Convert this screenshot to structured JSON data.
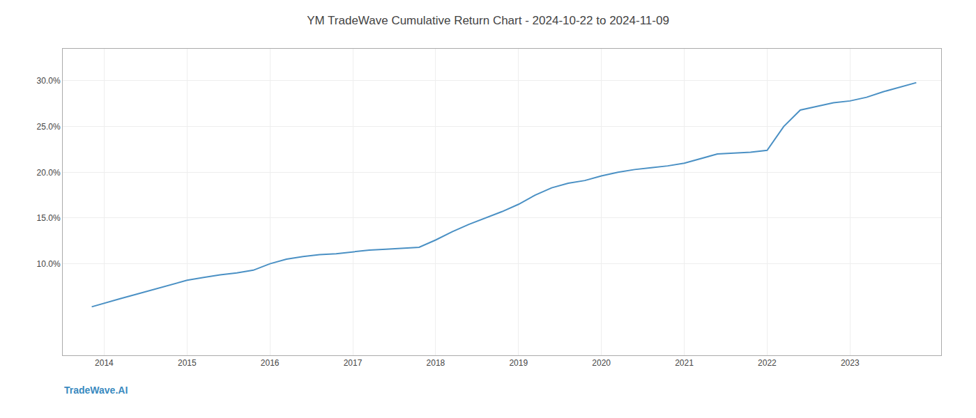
{
  "chart_data": {
    "type": "line",
    "title": "YM TradeWave Cumulative Return Chart - 2024-10-22 to 2024-11-09",
    "annotations": [
      "TradeWave.AI"
    ],
    "color": "#4a90c4",
    "x": [
      2013.85,
      2014.0,
      2014.2,
      2014.4,
      2014.6,
      2014.8,
      2015.0,
      2015.2,
      2015.4,
      2015.6,
      2015.8,
      2016.0,
      2016.2,
      2016.4,
      2016.6,
      2016.8,
      2017.0,
      2017.2,
      2017.4,
      2017.6,
      2017.8,
      2018.0,
      2018.2,
      2018.4,
      2018.6,
      2018.8,
      2019.0,
      2019.2,
      2019.4,
      2019.6,
      2019.8,
      2020.0,
      2020.2,
      2020.4,
      2020.6,
      2020.8,
      2021.0,
      2021.2,
      2021.4,
      2021.6,
      2021.8,
      2022.0,
      2022.2,
      2022.4,
      2022.6,
      2022.8,
      2023.0,
      2023.2,
      2023.4,
      2023.6,
      2023.8
    ],
    "values": [
      0.053,
      0.057,
      0.062,
      0.067,
      0.072,
      0.077,
      0.082,
      0.085,
      0.088,
      0.09,
      0.093,
      0.1,
      0.105,
      0.108,
      0.11,
      0.111,
      0.113,
      0.115,
      0.116,
      0.117,
      0.118,
      0.126,
      0.135,
      0.143,
      0.15,
      0.157,
      0.165,
      0.175,
      0.183,
      0.188,
      0.191,
      0.196,
      0.2,
      0.203,
      0.205,
      0.207,
      0.21,
      0.215,
      0.22,
      0.221,
      0.222,
      0.224,
      0.25,
      0.268,
      0.272,
      0.276,
      0.278,
      0.282,
      0.288,
      0.293,
      0.298
    ],
    "xlim": [
      2013.5,
      2024.1
    ],
    "ylim": [
      0.0,
      0.335
    ],
    "xticks": [
      2014,
      2015,
      2016,
      2017,
      2018,
      2019,
      2020,
      2021,
      2022,
      2023
    ],
    "yticks": [
      {
        "value": 0.1,
        "label": "10.0%"
      },
      {
        "value": 0.15,
        "label": "15.0%"
      },
      {
        "value": 0.2,
        "label": "20.0%"
      },
      {
        "value": 0.25,
        "label": "25.0%"
      },
      {
        "value": 0.3,
        "label": "30.0%"
      }
    ],
    "grid": true
  }
}
